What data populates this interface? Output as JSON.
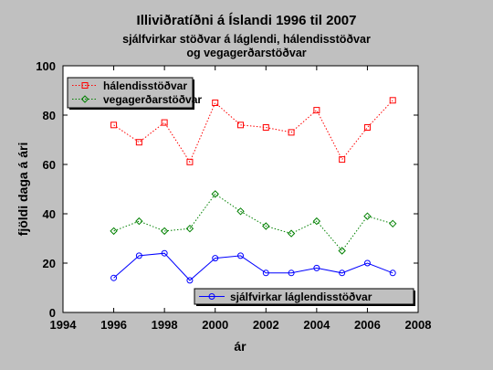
{
  "chart_data": {
    "type": "line",
    "title": "Illiviðratíðni á Íslandi 1996 til 2007",
    "subtitle_lines": [
      "sjálfvirkar stöðvar á láglendi, hálendisstöðvar",
      "og vegagerðarstöðvar"
    ],
    "xlabel": "ár",
    "ylabel": "fjöldi daga á ári",
    "xlim": [
      1994,
      2008
    ],
    "ylim": [
      0,
      100
    ],
    "xticks": [
      1994,
      1996,
      1998,
      2000,
      2002,
      2004,
      2006,
      2008
    ],
    "yticks": [
      0,
      20,
      40,
      60,
      80,
      100
    ],
    "grid": false,
    "x": [
      1996,
      1997,
      1998,
      1999,
      2000,
      2001,
      2002,
      2003,
      2004,
      2005,
      2006,
      2007
    ],
    "series": [
      {
        "name": "hálendisstöðvar",
        "color": "#ff0000",
        "marker": "square",
        "line_style": "dotted",
        "values": [
          76,
          69,
          77,
          61,
          85,
          76,
          75,
          73,
          82,
          62,
          75,
          86
        ]
      },
      {
        "name": "vegagerðarstöðvar",
        "color": "#008000",
        "marker": "diamond",
        "line_style": "dotted",
        "values": [
          33,
          37,
          33,
          34,
          48,
          41,
          35,
          32,
          37,
          25,
          39,
          36
        ]
      },
      {
        "name": "sjálfvirkar láglendisstöðvar",
        "color": "#0000ff",
        "marker": "circle",
        "line_style": "solid",
        "values": [
          14,
          23,
          24,
          13,
          22,
          23,
          16,
          16,
          18,
          16,
          20,
          16
        ]
      }
    ],
    "legends": [
      {
        "placement": "top-left",
        "entries": [
          0,
          1
        ]
      },
      {
        "placement": "bottom-right",
        "entries": [
          2
        ]
      }
    ]
  }
}
